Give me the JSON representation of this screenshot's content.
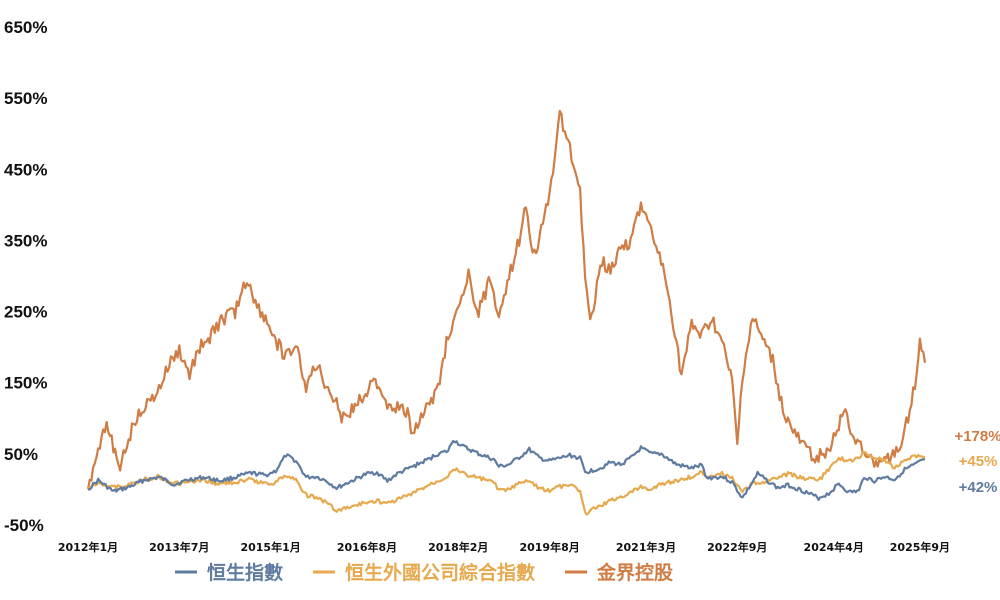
{
  "chart_data": {
    "type": "line",
    "title": "",
    "xlabel": "",
    "ylabel": "",
    "ylim": [
      -50,
      650
    ],
    "xlim": [
      "2012-01",
      "2025-10"
    ],
    "grid": false,
    "legend_position": "bottom",
    "yticks": [
      {
        "value": -50,
        "label": "-50%"
      },
      {
        "value": 50,
        "label": "50%"
      },
      {
        "value": 150,
        "label": "150%"
      },
      {
        "value": 250,
        "label": "250%"
      },
      {
        "value": 350,
        "label": "350%"
      },
      {
        "value": 450,
        "label": "450%"
      },
      {
        "value": 550,
        "label": "550%"
      },
      {
        "value": 650,
        "label": "650%"
      }
    ],
    "xticks": [
      {
        "date": "2012-01",
        "label": "2012年1月"
      },
      {
        "date": "2013-07",
        "label": "2013年7月"
      },
      {
        "date": "2015-01",
        "label": "2015年1月"
      },
      {
        "date": "2016-08",
        "label": "2016年8月"
      },
      {
        "date": "2018-02",
        "label": "2018年2月"
      },
      {
        "date": "2019-08",
        "label": "2019年8月"
      },
      {
        "date": "2021-03",
        "label": "2021年3月"
      },
      {
        "date": "2022-09",
        "label": "2022年9月"
      },
      {
        "date": "2024-04",
        "label": "2024年4月"
      },
      {
        "date": "2025-09",
        "label": "2025年9月"
      }
    ],
    "series": [
      {
        "name": "恒生指數",
        "color": "#5f7ba0",
        "end_label": "+42%",
        "points": [
          [
            "2012-01",
            0
          ],
          [
            "2012-03",
            13
          ],
          [
            "2012-06",
            -3
          ],
          [
            "2012-09",
            3
          ],
          [
            "2012-12",
            13
          ],
          [
            "2013-03",
            17
          ],
          [
            "2013-06",
            7
          ],
          [
            "2013-09",
            14
          ],
          [
            "2013-12",
            17
          ],
          [
            "2014-03",
            12
          ],
          [
            "2014-06",
            17
          ],
          [
            "2014-09",
            23
          ],
          [
            "2014-12",
            20
          ],
          [
            "2015-02",
            26
          ],
          [
            "2015-04",
            48
          ],
          [
            "2015-06",
            40
          ],
          [
            "2015-08",
            17
          ],
          [
            "2015-10",
            18
          ],
          [
            "2015-12",
            12
          ],
          [
            "2016-02",
            2
          ],
          [
            "2016-05",
            12
          ],
          [
            "2016-08",
            22
          ],
          [
            "2016-10",
            24
          ],
          [
            "2016-12",
            12
          ],
          [
            "2017-02",
            22
          ],
          [
            "2017-05",
            32
          ],
          [
            "2017-08",
            42
          ],
          [
            "2017-10",
            50
          ],
          [
            "2017-12",
            54
          ],
          [
            "2018-01",
            70
          ],
          [
            "2018-03",
            60
          ],
          [
            "2018-06",
            50
          ],
          [
            "2018-09",
            42
          ],
          [
            "2018-10",
            32
          ],
          [
            "2018-12",
            35
          ],
          [
            "2019-02",
            45
          ],
          [
            "2019-04",
            56
          ],
          [
            "2019-06",
            44
          ],
          [
            "2019-08",
            40
          ],
          [
            "2019-10",
            44
          ],
          [
            "2019-12",
            48
          ],
          [
            "2020-02",
            44
          ],
          [
            "2020-03",
            24
          ],
          [
            "2020-06",
            30
          ],
          [
            "2020-08",
            38
          ],
          [
            "2020-10",
            35
          ],
          [
            "2020-12",
            44
          ],
          [
            "2021-02",
            58
          ],
          [
            "2021-04",
            50
          ],
          [
            "2021-06",
            50
          ],
          [
            "2021-09",
            35
          ],
          [
            "2021-12",
            30
          ],
          [
            "2022-02",
            34
          ],
          [
            "2022-03",
            16
          ],
          [
            "2022-06",
            18
          ],
          [
            "2022-08",
            10
          ],
          [
            "2022-10",
            -12
          ],
          [
            "2022-12",
            10
          ],
          [
            "2023-01",
            22
          ],
          [
            "2023-03",
            12
          ],
          [
            "2023-05",
            2
          ],
          [
            "2023-07",
            6
          ],
          [
            "2023-10",
            -2
          ],
          [
            "2024-01",
            -12
          ],
          [
            "2024-03",
            -6
          ],
          [
            "2024-05",
            8
          ],
          [
            "2024-07",
            -4
          ],
          [
            "2024-09",
            -2
          ],
          [
            "2024-10",
            18
          ],
          [
            "2024-12",
            12
          ],
          [
            "2025-02",
            18
          ],
          [
            "2025-04",
            14
          ],
          [
            "2025-06",
            28
          ],
          [
            "2025-08",
            35
          ],
          [
            "2025-10",
            42
          ]
        ]
      },
      {
        "name": "恒生外國公司綜合指數",
        "color": "#e6a94e",
        "end_label": "+45%",
        "points": [
          [
            "2012-01",
            0
          ],
          [
            "2012-03",
            10
          ],
          [
            "2012-06",
            3
          ],
          [
            "2012-09",
            6
          ],
          [
            "2012-12",
            14
          ],
          [
            "2013-03",
            18
          ],
          [
            "2013-06",
            8
          ],
          [
            "2013-09",
            10
          ],
          [
            "2013-12",
            12
          ],
          [
            "2014-03",
            8
          ],
          [
            "2014-06",
            10
          ],
          [
            "2014-09",
            14
          ],
          [
            "2014-12",
            8
          ],
          [
            "2015-02",
            10
          ],
          [
            "2015-04",
            20
          ],
          [
            "2015-06",
            14
          ],
          [
            "2015-08",
            -8
          ],
          [
            "2015-10",
            -12
          ],
          [
            "2015-12",
            -18
          ],
          [
            "2016-02",
            -30
          ],
          [
            "2016-05",
            -24
          ],
          [
            "2016-08",
            -18
          ],
          [
            "2016-10",
            -16
          ],
          [
            "2016-12",
            -20
          ],
          [
            "2017-02",
            -14
          ],
          [
            "2017-05",
            -6
          ],
          [
            "2017-08",
            6
          ],
          [
            "2017-10",
            12
          ],
          [
            "2017-12",
            20
          ],
          [
            "2018-01",
            30
          ],
          [
            "2018-03",
            22
          ],
          [
            "2018-06",
            16
          ],
          [
            "2018-09",
            10
          ],
          [
            "2018-10",
            -2
          ],
          [
            "2018-12",
            0
          ],
          [
            "2019-02",
            8
          ],
          [
            "2019-04",
            12
          ],
          [
            "2019-06",
            2
          ],
          [
            "2019-08",
            -2
          ],
          [
            "2019-10",
            4
          ],
          [
            "2019-12",
            6
          ],
          [
            "2020-02",
            -2
          ],
          [
            "2020-03",
            -34
          ],
          [
            "2020-05",
            -26
          ],
          [
            "2020-08",
            -16
          ],
          [
            "2020-10",
            -10
          ],
          [
            "2020-12",
            -4
          ],
          [
            "2021-02",
            4
          ],
          [
            "2021-04",
            0
          ],
          [
            "2021-06",
            8
          ],
          [
            "2021-09",
            12
          ],
          [
            "2021-12",
            18
          ],
          [
            "2022-02",
            24
          ],
          [
            "2022-03",
            18
          ],
          [
            "2022-06",
            22
          ],
          [
            "2022-08",
            16
          ],
          [
            "2022-10",
            -4
          ],
          [
            "2022-12",
            8
          ],
          [
            "2023-01",
            10
          ],
          [
            "2023-03",
            12
          ],
          [
            "2023-05",
            16
          ],
          [
            "2023-07",
            22
          ],
          [
            "2023-10",
            16
          ],
          [
            "2024-01",
            12
          ],
          [
            "2024-03",
            28
          ],
          [
            "2024-05",
            44
          ],
          [
            "2024-07",
            40
          ],
          [
            "2024-09",
            44
          ],
          [
            "2024-10",
            52
          ],
          [
            "2024-12",
            46
          ],
          [
            "2025-02",
            40
          ],
          [
            "2025-04",
            30
          ],
          [
            "2025-06",
            42
          ],
          [
            "2025-08",
            48
          ],
          [
            "2025-10",
            45
          ]
        ]
      },
      {
        "name": "金界控股",
        "color": "#d07d45",
        "end_label": "+178%",
        "points": [
          [
            "2012-01",
            0
          ],
          [
            "2012-03",
            62
          ],
          [
            "2012-05",
            90
          ],
          [
            "2012-07",
            28
          ],
          [
            "2012-09",
            70
          ],
          [
            "2012-11",
            110
          ],
          [
            "2013-01",
            120
          ],
          [
            "2013-03",
            140
          ],
          [
            "2013-05",
            175
          ],
          [
            "2013-07",
            195
          ],
          [
            "2013-09",
            160
          ],
          [
            "2013-11",
            200
          ],
          [
            "2014-01",
            215
          ],
          [
            "2014-03",
            235
          ],
          [
            "2014-06",
            250
          ],
          [
            "2014-08",
            290
          ],
          [
            "2014-09",
            290
          ],
          [
            "2014-10",
            260
          ],
          [
            "2014-12",
            240
          ],
          [
            "2015-02",
            210
          ],
          [
            "2015-04",
            185
          ],
          [
            "2015-06",
            200
          ],
          [
            "2015-08",
            145
          ],
          [
            "2015-10",
            175
          ],
          [
            "2015-12",
            145
          ],
          [
            "2016-02",
            125
          ],
          [
            "2016-03",
            100
          ],
          [
            "2016-05",
            110
          ],
          [
            "2016-08",
            140
          ],
          [
            "2016-10",
            150
          ],
          [
            "2016-12",
            120
          ],
          [
            "2017-02",
            115
          ],
          [
            "2017-04",
            105
          ],
          [
            "2017-05",
            80
          ],
          [
            "2017-06",
            95
          ],
          [
            "2017-08",
            115
          ],
          [
            "2017-10",
            140
          ],
          [
            "2017-12",
            220
          ],
          [
            "2018-02",
            250
          ],
          [
            "2018-04",
            300
          ],
          [
            "2018-06",
            250
          ],
          [
            "2018-08",
            290
          ],
          [
            "2018-10",
            250
          ],
          [
            "2018-12",
            300
          ],
          [
            "2019-02",
            350
          ],
          [
            "2019-03",
            400
          ],
          [
            "2019-05",
            330
          ],
          [
            "2019-07",
            380
          ],
          [
            "2019-09",
            460
          ],
          [
            "2019-10",
            530
          ],
          [
            "2019-12",
            480
          ],
          [
            "2020-02",
            420
          ],
          [
            "2020-03",
            300
          ],
          [
            "2020-04",
            230
          ],
          [
            "2020-06",
            320
          ],
          [
            "2020-08",
            310
          ],
          [
            "2020-10",
            340
          ],
          [
            "2020-12",
            350
          ],
          [
            "2021-02",
            400
          ],
          [
            "2021-04",
            360
          ],
          [
            "2021-06",
            320
          ],
          [
            "2021-08",
            250
          ],
          [
            "2021-10",
            160
          ],
          [
            "2021-12",
            230
          ],
          [
            "2022-02",
            215
          ],
          [
            "2022-04",
            240
          ],
          [
            "2022-06",
            205
          ],
          [
            "2022-08",
            150
          ],
          [
            "2022-09",
            60
          ],
          [
            "2022-10",
            160
          ],
          [
            "2022-12",
            240
          ],
          [
            "2023-02",
            210
          ],
          [
            "2023-04",
            180
          ],
          [
            "2023-06",
            110
          ],
          [
            "2023-08",
            80
          ],
          [
            "2023-10",
            60
          ],
          [
            "2023-12",
            45
          ],
          [
            "2024-02",
            50
          ],
          [
            "2024-04",
            70
          ],
          [
            "2024-06",
            110
          ],
          [
            "2024-08",
            70
          ],
          [
            "2024-10",
            60
          ],
          [
            "2024-12",
            30
          ],
          [
            "2025-02",
            40
          ],
          [
            "2025-04",
            50
          ],
          [
            "2025-06",
            80
          ],
          [
            "2025-08",
            150
          ],
          [
            "2025-09",
            210
          ],
          [
            "2025-10",
            178
          ]
        ]
      }
    ]
  }
}
